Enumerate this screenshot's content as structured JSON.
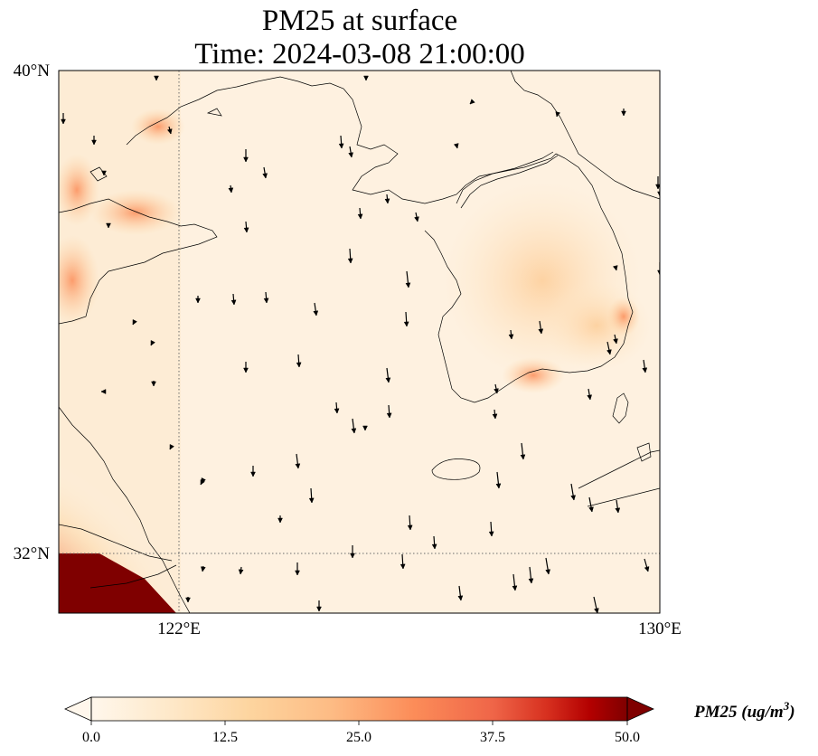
{
  "title": {
    "line1": "PM25 at surface",
    "line2": "Time: 2024-03-08 21:00:00"
  },
  "map": {
    "lat_ticks": [
      "40°N",
      "32°N"
    ],
    "lon_ticks": [
      "122°E",
      "130°E"
    ],
    "extent": {
      "lon": [
        120,
        130
      ],
      "lat": [
        31,
        40
      ]
    },
    "gridlines": "dotted at 122°E and 32°N",
    "coastlines": "black thin"
  },
  "colorbar": {
    "colormap": "OrRd",
    "range": [
      0,
      50
    ],
    "ticks": [
      "0.0",
      "12.5",
      "25.0",
      "37.5",
      "50.0"
    ],
    "label": "PM25 (ug/m",
    "label_superscript": "3",
    "label_close": ")",
    "extend": "both"
  },
  "colors": {
    "low": "#fff7ec",
    "mid": "#fdbb84",
    "high": "#d7301f",
    "max": "#7f0000"
  },
  "field_summary": {
    "background_level": "low (~3-8 ug/m3) over Yellow Sea",
    "high_regions": [
      "Southwest corner near Shanghai (~50+)",
      "West coast Shandong/Liaoning (~25-35)",
      "Korean peninsula interior (~10-15)"
    ]
  },
  "wind_vectors": "southward-pointing arrows across domain"
}
